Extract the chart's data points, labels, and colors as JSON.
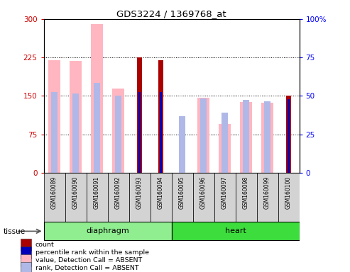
{
  "title": "GDS3224 / 1369768_at",
  "samples": [
    "GSM160089",
    "GSM160090",
    "GSM160091",
    "GSM160092",
    "GSM160093",
    "GSM160094",
    "GSM160095",
    "GSM160096",
    "GSM160097",
    "GSM160098",
    "GSM160099",
    "GSM160100"
  ],
  "groups": [
    {
      "name": "diaphragm",
      "indices": [
        0,
        1,
        2,
        3,
        4,
        5
      ],
      "color": "#90EE90"
    },
    {
      "name": "heart",
      "indices": [
        6,
        7,
        8,
        9,
        10,
        11
      ],
      "color": "#3EDD3E"
    }
  ],
  "value_absent": [
    220,
    218,
    290,
    165,
    0,
    0,
    0,
    147,
    95,
    138,
    137,
    0
  ],
  "rank_absent": [
    158,
    155,
    175,
    150,
    0,
    0,
    110,
    145,
    118,
    142,
    140,
    0
  ],
  "count": [
    0,
    0,
    0,
    0,
    225,
    220,
    0,
    0,
    0,
    0,
    0,
    150
  ],
  "percentile_rank": [
    0,
    0,
    0,
    0,
    157,
    157,
    0,
    0,
    0,
    0,
    0,
    143
  ],
  "left_ylim": [
    0,
    300
  ],
  "right_ylim": [
    0,
    100
  ],
  "left_yticks": [
    0,
    75,
    150,
    225,
    300
  ],
  "right_yticks": [
    0,
    25,
    50,
    75,
    100
  ],
  "color_count": "#aa0000",
  "color_percentile": "#0000bb",
  "color_value_absent": "#ffb6c1",
  "color_rank_absent": "#b0b8e8",
  "tissue_label": "tissue",
  "legend_items": [
    {
      "color": "#aa0000",
      "label": "count"
    },
    {
      "color": "#0000bb",
      "label": "percentile rank within the sample"
    },
    {
      "color": "#ffb6c1",
      "label": "value, Detection Call = ABSENT"
    },
    {
      "color": "#b0b8e8",
      "label": "rank, Detection Call = ABSENT"
    }
  ]
}
